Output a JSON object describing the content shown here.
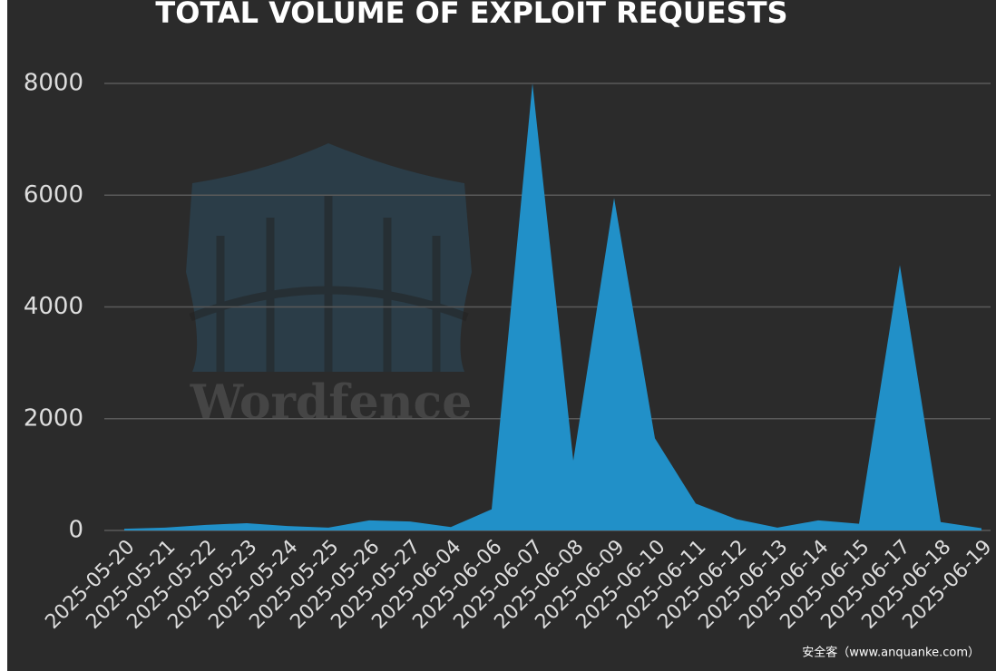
{
  "chart_data": {
    "type": "area",
    "title": "TOTAL VOLUME OF EXPLOIT REQUESTS",
    "categories": [
      "2025-05-20",
      "2025-05-21",
      "2025-05-22",
      "2025-05-23",
      "2025-05-24",
      "2025-05-25",
      "2025-05-26",
      "2025-05-27",
      "2025-06-04",
      "2025-06-06",
      "2025-06-07",
      "2025-06-08",
      "2025-06-09",
      "2025-06-10",
      "2025-06-11",
      "2025-06-12",
      "2025-06-13",
      "2025-06-14",
      "2025-06-15",
      "2025-06-17",
      "2025-06-18",
      "2025-06-19"
    ],
    "values": [
      30,
      50,
      100,
      130,
      80,
      50,
      180,
      160,
      60,
      380,
      8000,
      1250,
      5950,
      1650,
      480,
      200,
      50,
      180,
      120,
      4750,
      150,
      40
    ],
    "color": "#2190c8",
    "ylim": [
      0,
      8000
    ],
    "yticks": [
      0,
      2000,
      4000,
      6000,
      8000
    ],
    "grid": true,
    "watermark": "Wordfence",
    "source_note": "安全客（www.anquanke.com）"
  }
}
